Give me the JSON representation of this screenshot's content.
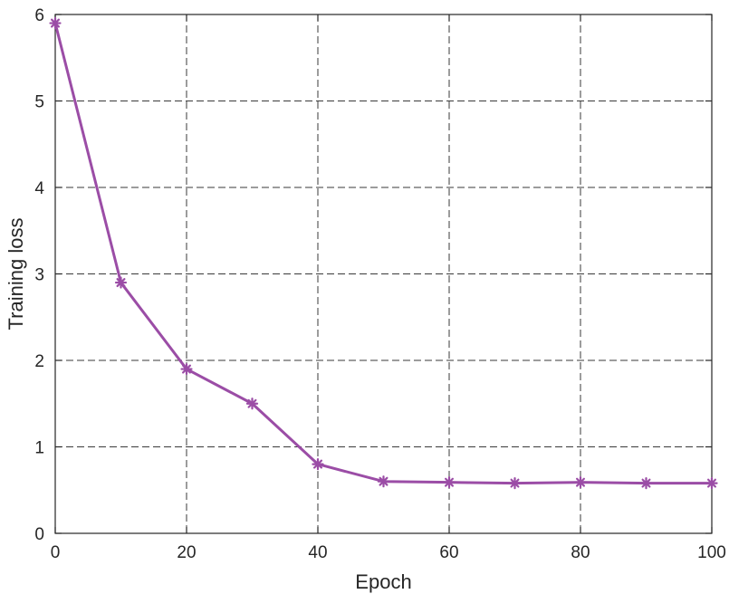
{
  "chart_data": {
    "type": "line",
    "xlabel": "Epoch",
    "ylabel": "Training loss",
    "xlim": [
      0,
      100
    ],
    "ylim": [
      0,
      6
    ],
    "xticks": [
      0,
      20,
      40,
      60,
      80,
      100
    ],
    "yticks": [
      0,
      1,
      2,
      3,
      4,
      5,
      6
    ],
    "grid": true,
    "series": [
      {
        "color": "#9B4DA6",
        "marker": "asterisk",
        "x": [
          0,
          10,
          20,
          30,
          40,
          50,
          60,
          70,
          80,
          90,
          100
        ],
        "y": [
          5.9,
          2.9,
          1.9,
          1.5,
          0.8,
          0.6,
          0.59,
          0.58,
          0.59,
          0.58,
          0.58
        ]
      }
    ]
  }
}
